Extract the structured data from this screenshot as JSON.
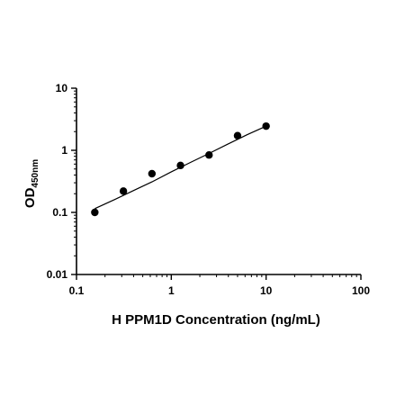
{
  "chart_data": {
    "type": "scatter",
    "xlabel": "H PPM1D Concentration (ng/mL)",
    "ylabel": {
      "main": "OD",
      "sub": "450nm"
    },
    "xscale": "log",
    "yscale": "log",
    "xlim": [
      0.1,
      100
    ],
    "ylim": [
      0.01,
      10
    ],
    "x_ticks": [
      0.1,
      1,
      10,
      100
    ],
    "x_tick_labels": [
      "0.1",
      "1",
      "10",
      "100"
    ],
    "y_ticks": [
      0.01,
      0.1,
      1,
      10
    ],
    "y_tick_labels": [
      "0.01",
      "0.1",
      "1",
      "10"
    ],
    "grid": false,
    "points": [
      {
        "x": 0.156,
        "y": 0.1
      },
      {
        "x": 0.3125,
        "y": 0.22
      },
      {
        "x": 0.625,
        "y": 0.42
      },
      {
        "x": 1.25,
        "y": 0.57
      },
      {
        "x": 2.5,
        "y": 0.84
      },
      {
        "x": 5,
        "y": 1.72
      },
      {
        "x": 10,
        "y": 2.45
      }
    ],
    "fit_curve": {
      "x": [
        0.156,
        0.25,
        0.4,
        0.625,
        1.0,
        1.6,
        2.5,
        4.0,
        6.3,
        10
      ],
      "y": [
        0.115,
        0.16,
        0.225,
        0.31,
        0.45,
        0.64,
        0.89,
        1.27,
        1.78,
        2.45
      ]
    },
    "colors": {
      "points": "#000000",
      "line": "#000000",
      "axis": "#000000"
    }
  }
}
